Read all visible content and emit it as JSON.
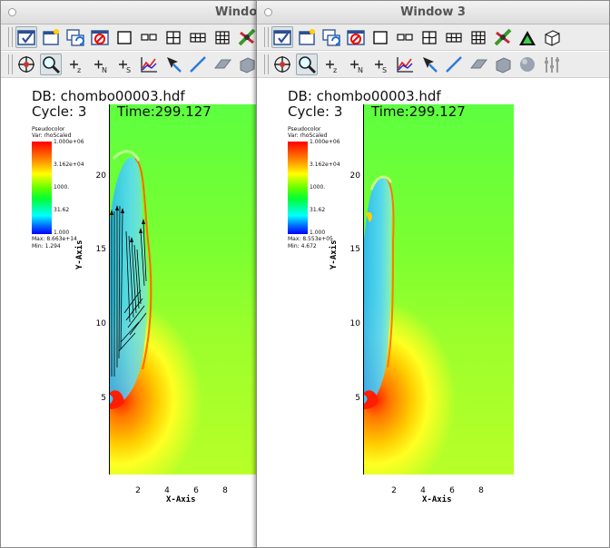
{
  "windows": [
    {
      "id": "left",
      "title": "Window",
      "db_label": "DB: chombo00003.hdf",
      "cycle_label": "Cycle: 3",
      "time_label": "Time:299.127",
      "legend": {
        "title": "Pseudocolor",
        "var": "Var: rhoScaled",
        "ticks": [
          "1.000e+06",
          "3.162e+04",
          "1000.",
          "31.62",
          "1.000"
        ],
        "max": "Max: 8.663e+14",
        "min": "Min: 1.294"
      },
      "y_axis_label": "Y-Axis",
      "x_axis_label": "X-Axis",
      "y_ticks": [
        "20",
        "15",
        "10",
        "5"
      ],
      "x_ticks": [
        "2",
        "4",
        "6",
        "8"
      ],
      "has_vectors": true
    },
    {
      "id": "right",
      "title": "Window 3",
      "db_label": "DB: chombo00003.hdf",
      "cycle_label": "Cycle: 3",
      "time_label": "Time:299.127",
      "legend": {
        "title": "Pseudocolor",
        "var": "Var: rhoScaled",
        "ticks": [
          "1.000e+06",
          "3.162e+04",
          "1000.",
          "31.62",
          "1.000"
        ],
        "max": "Max: 8.553e+05",
        "min": "Min: 4.672"
      },
      "y_axis_label": "Y-Axis",
      "x_axis_label": "X-Axis",
      "y_ticks": [
        "20",
        "15",
        "10",
        "5"
      ],
      "x_ticks": [
        "2",
        "4",
        "6",
        "8"
      ],
      "has_vectors": false
    }
  ],
  "toolbar1_icons": [
    "select-icon",
    "new-window-icon",
    "copy-window-icon",
    "delete-window-icon",
    "layout-1x1-icon",
    "layout-1x2-icon",
    "layout-2x2-icon",
    "layout-2x3-icon",
    "layout-3x3-icon",
    "lock-view-icon",
    "lock-time-icon",
    "view-3d-icon"
  ],
  "toolbar2_icons": [
    "navigate-icon",
    "zoom-icon",
    "lineout-z-icon",
    "lineout-n-icon",
    "lineout-s-icon",
    "query-plot-icon",
    "pick-icon",
    "line-icon",
    "plane-icon",
    "box-icon",
    "sphere-icon",
    "slider-icon"
  ]
}
